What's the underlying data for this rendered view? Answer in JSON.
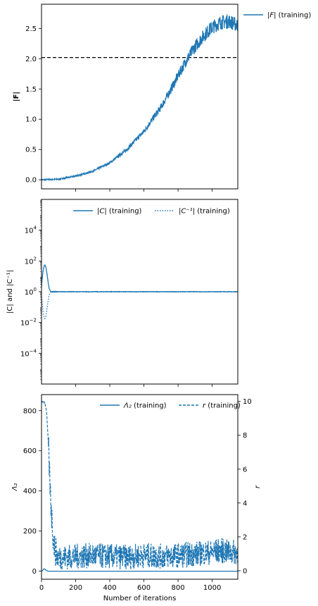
{
  "colors": {
    "series": "#1f77b4",
    "reference": "#000000",
    "frame": "#000000"
  },
  "chart_data": [
    {
      "type": "line",
      "panel": "top",
      "ylabel": "|F|",
      "xlim": [
        0,
        1150
      ],
      "ylim": [
        -0.15,
        2.9
      ],
      "yticks": [
        0.0,
        0.5,
        1.0,
        1.5,
        2.0,
        2.5
      ],
      "ytick_labels": [
        "0.0",
        "0.5",
        "1.0",
        "1.5",
        "2.0",
        "2.5"
      ],
      "x_gridlines": [
        200,
        400,
        600,
        800,
        1000
      ],
      "reference_line": {
        "y": 2.02,
        "style": "dashed"
      },
      "series": [
        {
          "name": "|F| (training)",
          "name_main": "|F|",
          "name_suffix": " (training)",
          "style": "solid",
          "x": [
            0,
            100,
            200,
            300,
            400,
            500,
            600,
            700,
            750,
            800,
            850,
            900,
            950,
            1000,
            1050,
            1100,
            1150
          ],
          "y": [
            0.0,
            0.01,
            0.06,
            0.14,
            0.28,
            0.5,
            0.8,
            1.2,
            1.45,
            1.72,
            1.98,
            2.2,
            2.38,
            2.52,
            2.6,
            2.62,
            2.55
          ]
        }
      ],
      "legend_position": "outside-right"
    },
    {
      "type": "line",
      "panel": "middle",
      "ylabel": "|C| and |C⁻¹|",
      "yscale": "log",
      "xlim": [
        0,
        1150
      ],
      "ylim_log10": [
        -6,
        6
      ],
      "yticks_log10": [
        -4,
        -2,
        0,
        2,
        4
      ],
      "ytick_labels": [
        {
          "base": "10",
          "exp": "−4"
        },
        {
          "base": "10",
          "exp": "−2"
        },
        {
          "base": "10",
          "exp": "0"
        },
        {
          "base": "10",
          "exp": "2"
        },
        {
          "base": "10",
          "exp": "4"
        }
      ],
      "series": [
        {
          "name": "|C| (training)",
          "name_main": "|C|",
          "name_suffix": " (training)",
          "style": "solid",
          "x": [
            0,
            5,
            10,
            15,
            20,
            25,
            30,
            35,
            40,
            45,
            50,
            55,
            60,
            70,
            80,
            100,
            200,
            400,
            600,
            800,
            1000,
            1150
          ],
          "y": [
            2,
            8,
            25,
            45,
            55,
            40,
            20,
            8,
            3,
            1.6,
            1.2,
            1.05,
            1.0,
            1.0,
            1.0,
            1.0,
            1.0,
            1.0,
            1.0,
            1.0,
            1.0,
            1.0
          ]
        },
        {
          "name": "|C⁻¹| (training)",
          "name_main": "|C⁻¹|",
          "name_suffix": " (training)",
          "style": "dotted",
          "x": [
            0,
            5,
            10,
            15,
            20,
            25,
            30,
            35,
            40,
            45,
            50,
            55,
            60,
            80,
            100,
            1150
          ],
          "y": [
            0.5,
            0.12,
            0.04,
            0.022,
            0.018,
            0.025,
            0.05,
            0.12,
            0.3,
            0.6,
            0.85,
            0.95,
            1.0,
            1.0,
            1.0,
            1.0
          ]
        }
      ],
      "legend_position": "upper-right"
    },
    {
      "type": "line",
      "panel": "bottom",
      "xlabel": "Number of iterations",
      "ylabel": "Λ₂",
      "ylabel_right": "r",
      "xlim": [
        0,
        1150
      ],
      "xticks": [
        0,
        200,
        400,
        600,
        800,
        1000
      ],
      "xtick_labels": [
        "0",
        "200",
        "400",
        "600",
        "800",
        "1000"
      ],
      "ylim": [
        -40,
        880
      ],
      "yticks": [
        0,
        200,
        400,
        600,
        800
      ],
      "ytick_labels": [
        "0",
        "200",
        "400",
        "600",
        "800"
      ],
      "ylim_right": [
        -0.5,
        10.4
      ],
      "yticks_right": [
        0,
        2,
        4,
        6,
        8,
        10
      ],
      "ytick_labels_right": [
        "0",
        "2",
        "4",
        "6",
        "8",
        "10"
      ],
      "series": [
        {
          "name": "Λ₂ (training)",
          "name_main": "Λ₂",
          "name_suffix": " (training)",
          "style": "solid",
          "axis": "left",
          "x": [
            0,
            5,
            10,
            15,
            20,
            25,
            30,
            35,
            40,
            60,
            100,
            200,
            400,
            600,
            800,
            1000,
            1150
          ],
          "y": [
            0,
            3,
            8,
            12,
            10,
            6,
            3,
            1,
            0,
            0,
            0,
            0,
            0,
            0,
            0,
            0,
            0
          ]
        },
        {
          "name": "r (training)",
          "name_main": "r",
          "name_suffix": " (training)",
          "style": "dashed",
          "axis": "right",
          "x": [
            0,
            10,
            20,
            30,
            40,
            50,
            60,
            70,
            80,
            90,
            100,
            150,
            200,
            300,
            400,
            500,
            600,
            700,
            800,
            900,
            1000,
            1050,
            1100,
            1150
          ],
          "y": [
            10.0,
            10.0,
            9.9,
            9.4,
            7.5,
            5.0,
            3.2,
            1.8,
            1.2,
            0.9,
            0.8,
            0.8,
            0.85,
            0.9,
            0.85,
            0.8,
            0.9,
            0.85,
            0.9,
            1.0,
            1.1,
            1.2,
            1.1,
            1.1
          ]
        }
      ],
      "legend_position": "upper-right"
    }
  ]
}
